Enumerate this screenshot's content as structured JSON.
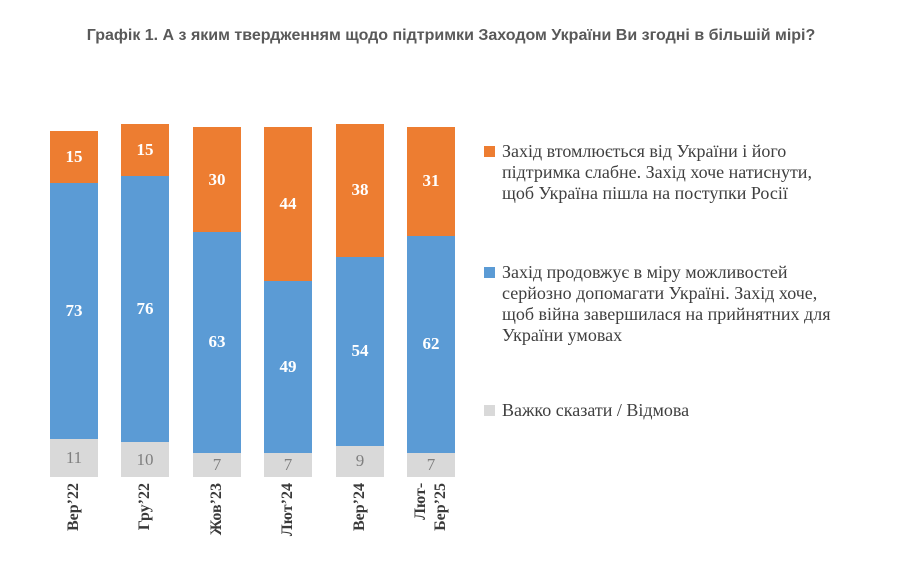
{
  "title": "Графік 1. А з яким твердженням щодо підтримки Заходом України Ви згодні в більшій мірі?",
  "chart_data": {
    "type": "bar",
    "stacked": true,
    "orientation": "vertical",
    "gridlines": false,
    "axes_visible": false,
    "value_labels": true,
    "legend_position": "right",
    "value_range": [
      0,
      100
    ],
    "categories": [
      "Вер’22",
      "Гру’22",
      "Жов’23",
      "Лют’24",
      "Вер’24",
      "Лют-\nБер’25"
    ],
    "series": [
      {
        "key": "west-tired",
        "name": "Захід втомлюється від України і його підтримка слабне. Захід хоче натиснути, щоб Україна пішла на поступки Росії",
        "color": "#ED7D31",
        "label_color": "#FFFFFF",
        "label_bold": true,
        "values": [
          15,
          15,
          30,
          44,
          38,
          31
        ]
      },
      {
        "key": "west-helps",
        "name": "Захід продовжує в міру можливостей серйозно допомагати Україні. Захід хоче, щоб війна завершилася на прийнятних для України умовах",
        "color": "#5B9BD5",
        "label_color": "#FFFFFF",
        "label_bold": true,
        "values": [
          73,
          76,
          63,
          49,
          54,
          62
        ]
      },
      {
        "key": "hard-to-say",
        "name": "Важко сказати / Відмова",
        "color": "#D9D9D9",
        "label_color": "#7F7F7F",
        "label_bold": false,
        "values": [
          11,
          10,
          7,
          7,
          9,
          7
        ]
      }
    ]
  },
  "legend": {
    "items": [
      {
        "key": "west-tired",
        "color": "#ED7D31",
        "label": "Захід втомлюється від України і його\nпідтримка слабне. Захід хоче натиснути,\nщоб Україна пішла на поступки Росії"
      },
      {
        "key": "west-helps",
        "color": "#5B9BD5",
        "label": "Захід продовжує в міру можливостей\nсерйозно допомагати Україні. Захід хоче,\nщоб війна завершилася на прийнятних для\nУкраїни умовах"
      },
      {
        "key": "hard-to-say",
        "color": "#D9D9D9",
        "label": "Важко сказати / Відмова"
      }
    ]
  }
}
